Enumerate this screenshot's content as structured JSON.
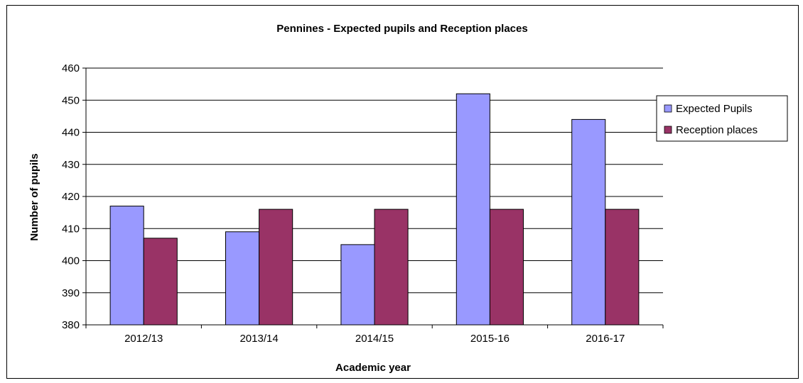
{
  "chart_data": {
    "type": "bar",
    "title": "Pennines - Expected pupils and Reception places",
    "xlabel": "Academic year",
    "ylabel": "Number of pupils",
    "categories": [
      "2012/13",
      "2013/14",
      "2014/15",
      "2015-16",
      "2016-17"
    ],
    "series": [
      {
        "name": "Expected Pupils",
        "values": [
          417,
          409,
          405,
          452,
          444
        ],
        "color": "#9999ff"
      },
      {
        "name": "Reception places",
        "values": [
          407,
          416,
          416,
          416,
          416
        ],
        "color": "#993366"
      }
    ],
    "ylim": [
      380,
      460
    ],
    "yticks": [
      380,
      390,
      400,
      410,
      420,
      430,
      440,
      450,
      460
    ],
    "ytick_labels": [
      "380",
      "390",
      "400",
      "410",
      "420",
      "430",
      "440",
      "450",
      "460"
    ],
    "grid": true,
    "legend_position": "right"
  }
}
